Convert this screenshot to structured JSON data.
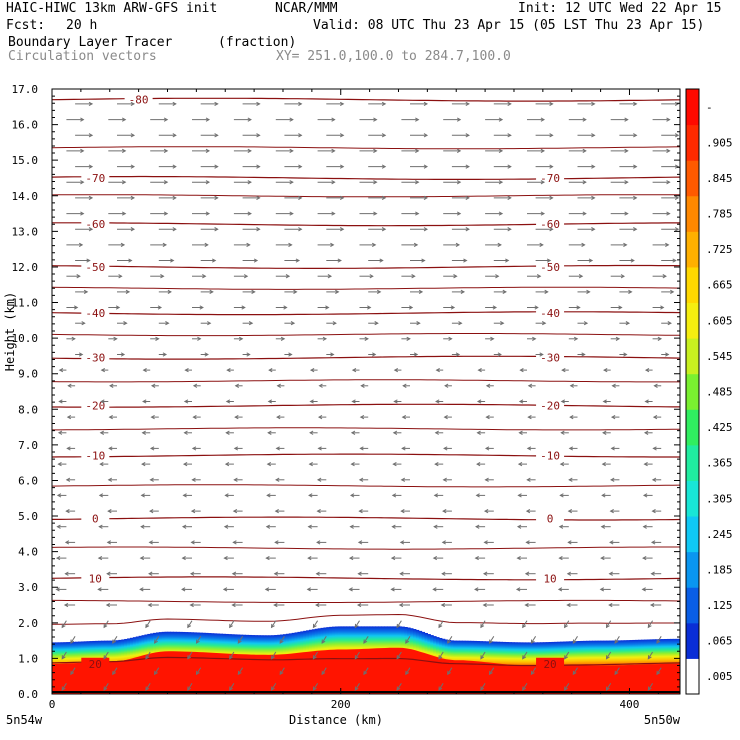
{
  "header": {
    "model": "HAIC-HIWC 13km ARW-GFS init",
    "org": "NCAR/MMM",
    "init": "Init: 12 UTC Wed 22 Apr 15",
    "fcst_label": "Fcst:",
    "fcst_value": "20 h",
    "valid": "Valid: 08 UTC Thu 23 Apr 15 (05 LST Thu 23 Apr 15)",
    "field1_name": "Boundary Layer Tracer",
    "field1_units": "(fraction)",
    "field2_name": "Circulation vectors",
    "xy": "XY= 251.0,100.0 to 284.7,100.0"
  },
  "chart_data": {
    "type": "heatmap",
    "xlabel": "Distance (km)",
    "ylabel": "Height (km)",
    "xlim": [
      0,
      435
    ],
    "ylim": [
      0,
      17
    ],
    "x_ticks": [
      "0",
      "200",
      "400"
    ],
    "x_tick_values": [
      0,
      200,
      400
    ],
    "x_endpoint_labels": {
      "left": "5n54w",
      "right": "5n50w"
    },
    "y_ticks": [
      "0.0",
      "1.0",
      "2.0",
      "3.0",
      "4.0",
      "5.0",
      "6.0",
      "7.0",
      "8.0",
      "9.0",
      "10.0",
      "11.0",
      "12.0",
      "13.0",
      "14.0",
      "15.0",
      "16.0",
      "17.0"
    ],
    "colorbar": {
      "labels": [
        ".005",
        ".065",
        ".125",
        ".185",
        ".245",
        ".305",
        ".365",
        ".425",
        ".485",
        ".545",
        ".605",
        ".665",
        ".725",
        ".785",
        ".845",
        ".905",
        "-"
      ],
      "colors": [
        "#ffffff",
        "#0a2ed6",
        "#0a5ee6",
        "#0a96f0",
        "#10c8f5",
        "#18e6d6",
        "#20eca0",
        "#30ee60",
        "#7af030",
        "#c8f020",
        "#f5ee10",
        "#ffd800",
        "#ffb000",
        "#ff8800",
        "#ff5a00",
        "#ff2a00",
        "#ff0a00"
      ]
    },
    "tracer_layer": {
      "description_levels": "boundary layer tracer fraction vs distance",
      "top_km": [
        [
          0,
          1.45
        ],
        [
          40,
          1.5
        ],
        [
          80,
          1.75
        ],
        [
          150,
          1.65
        ],
        [
          200,
          1.9
        ],
        [
          240,
          1.9
        ],
        [
          280,
          1.5
        ],
        [
          330,
          1.45
        ],
        [
          380,
          1.5
        ],
        [
          435,
          1.55
        ]
      ],
      "red_top_km": [
        [
          0,
          0.85
        ],
        [
          40,
          0.9
        ],
        [
          80,
          1.2
        ],
        [
          150,
          1.1
        ],
        [
          200,
          1.25
        ],
        [
          240,
          1.3
        ],
        [
          280,
          0.95
        ],
        [
          330,
          0.8
        ],
        [
          380,
          0.8
        ],
        [
          435,
          0.85
        ]
      ]
    },
    "temperature_contours_C": [
      {
        "value": -80,
        "label": "-80",
        "y_km": 16.7
      },
      {
        "value": -70,
        "label": "-70",
        "y_km": 14.5
      },
      {
        "value": -60,
        "label": "-60",
        "y_km": 13.2
      },
      {
        "value": -50,
        "label": "-50",
        "y_km": 12.0
      },
      {
        "value": -40,
        "label": "-40",
        "y_km": 10.7
      },
      {
        "value": -30,
        "label": "-30",
        "y_km": 9.45
      },
      {
        "value": -20,
        "label": "-20",
        "y_km": 8.1
      },
      {
        "value": -10,
        "label": "-10",
        "y_km": 6.7
      },
      {
        "value": 0,
        "label": "0",
        "y_km": 4.93
      },
      {
        "value": 10,
        "label": "10",
        "y_km": 3.25
      },
      {
        "value": 20,
        "label": "20",
        "y_km": 0.85
      }
    ],
    "extra_contour_levels_km": [
      15.35,
      14.0,
      11.4,
      10.1,
      8.8,
      7.45,
      5.85,
      4.1,
      2.6,
      1.95
    ],
    "vectors": {
      "upper_direction": "east",
      "lower_direction": "west",
      "reversal_height_km": 9.3
    }
  }
}
